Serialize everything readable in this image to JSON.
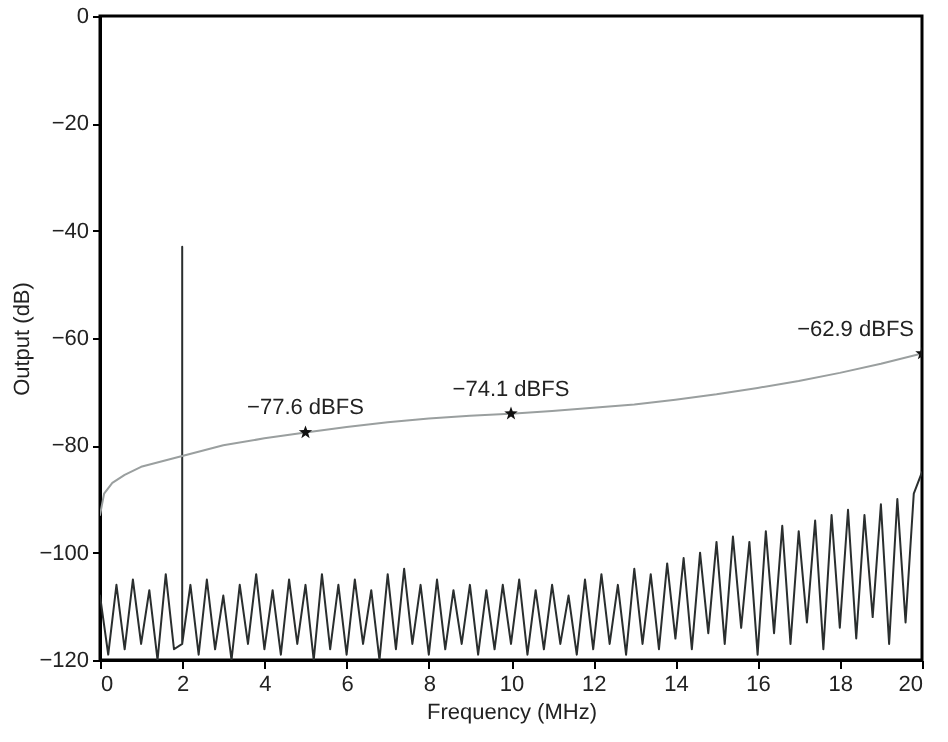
{
  "chart_data": {
    "type": "line",
    "xlabel": "Frequency (MHz)",
    "ylabel": "Output (dB)",
    "xlim": [
      0,
      20
    ],
    "xticks": [
      0,
      2,
      4,
      6,
      8,
      10,
      12,
      14,
      16,
      18,
      20
    ],
    "ylim": [
      -120,
      0
    ],
    "yticks": [
      -120,
      -100,
      -80,
      -60,
      -40,
      -20,
      0
    ],
    "grid": false,
    "series": [
      {
        "color": "#2a2e2e",
        "x": [
          0,
          0.2,
          0.4,
          0.6,
          0.8,
          1.0,
          1.2,
          1.4,
          1.6,
          1.8,
          2.0,
          2.0,
          2.0,
          2.2,
          2.4,
          2.6,
          2.8,
          3.0,
          3.2,
          3.4,
          3.6,
          3.8,
          4.0,
          4.2,
          4.4,
          4.6,
          4.8,
          5.0,
          5.2,
          5.4,
          5.6,
          5.8,
          6.0,
          6.2,
          6.4,
          6.6,
          6.8,
          7.0,
          7.2,
          7.4,
          7.6,
          7.8,
          8.0,
          8.2,
          8.4,
          8.6,
          8.8,
          9.0,
          9.2,
          9.4,
          9.6,
          9.8,
          10.0,
          10.2,
          10.4,
          10.6,
          10.8,
          11.0,
          11.2,
          11.4,
          11.6,
          11.8,
          12.0,
          12.2,
          12.4,
          12.6,
          12.8,
          13.0,
          13.2,
          13.4,
          13.6,
          13.8,
          14.0,
          14.2,
          14.4,
          14.6,
          14.8,
          15.0,
          15.2,
          15.4,
          15.6,
          15.8,
          16.0,
          16.2,
          16.4,
          16.6,
          16.8,
          17.0,
          17.2,
          17.4,
          17.6,
          17.8,
          18.0,
          18.2,
          18.4,
          18.6,
          18.8,
          19.0,
          19.2,
          19.4,
          19.6,
          19.8,
          20.0
        ],
        "values": [
          -108,
          -119,
          -106,
          -118,
          -105,
          -117,
          -107,
          -120,
          -104,
          -118,
          -117,
          -43,
          -117,
          -106,
          -119,
          -105,
          -118,
          -108,
          -120,
          -106,
          -117,
          -104,
          -118,
          -107,
          -119,
          -105,
          -117,
          -106,
          -120,
          -104,
          -118,
          -106,
          -119,
          -105,
          -117,
          -107,
          -120,
          -104,
          -118,
          -103,
          -117,
          -106,
          -119,
          -105,
          -118,
          -107,
          -117,
          -106,
          -119,
          -107,
          -118,
          -106,
          -117,
          -105,
          -119,
          -107,
          -118,
          -106,
          -117,
          -108,
          -119,
          -105,
          -118,
          -104,
          -117,
          -106,
          -119,
          -103,
          -117,
          -104,
          -118,
          -102,
          -116,
          -101,
          -118,
          -100,
          -115,
          -98,
          -117,
          -97,
          -114,
          -98,
          -119,
          -96,
          -115,
          -95,
          -117,
          -96,
          -113,
          -94,
          -118,
          -93,
          -114,
          -92,
          -116,
          -93,
          -112,
          -91,
          -117,
          -90,
          -113,
          -89,
          -85
        ]
      },
      {
        "color": "#9a9f9f",
        "x": [
          0,
          0.1,
          0.3,
          0.6,
          1,
          2,
          3,
          4,
          5,
          6,
          7,
          8,
          9,
          10,
          11,
          12,
          13,
          14,
          15,
          16,
          17,
          18,
          19,
          20
        ],
        "values": [
          -93,
          -89,
          -87,
          -85.5,
          -84,
          -82,
          -80,
          -78.7,
          -77.6,
          -76.6,
          -75.7,
          -75,
          -74.5,
          -74.1,
          -73.6,
          -73,
          -72.4,
          -71.5,
          -70.5,
          -69.3,
          -68,
          -66.5,
          -64.8,
          -62.9
        ]
      },
      {
        "type": "scatter",
        "marker": "star",
        "color": "#111111",
        "x": [
          5,
          10,
          20
        ],
        "values": [
          -77.6,
          -74.1,
          -62.9
        ]
      }
    ],
    "annotations": [
      {
        "text": "−77.6 dBFS",
        "x": 5,
        "y": -77.6
      },
      {
        "text": "−74.1 dBFS",
        "x": 10,
        "y": -74.1
      },
      {
        "text": "−62.9 dBFS",
        "x": 20,
        "y": -62.9
      }
    ]
  }
}
